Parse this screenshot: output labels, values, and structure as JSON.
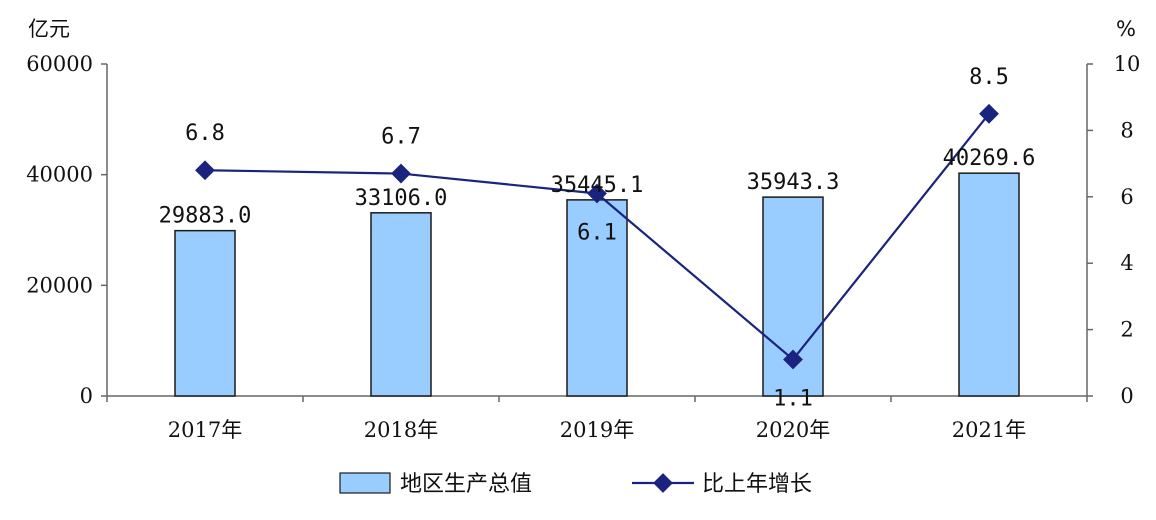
{
  "chart_data": {
    "type": "bar",
    "categories": [
      "2017年",
      "2018年",
      "2019年",
      "2020年",
      "2021年"
    ],
    "series": [
      {
        "name": "地区生产总值",
        "type": "bar",
        "axis": "left",
        "values": [
          29883.0,
          33106.0,
          35445.1,
          35943.3,
          40269.6
        ],
        "labels": [
          "29883.0",
          "33106.0",
          "35445.1",
          "35943.3",
          "40269.6"
        ]
      },
      {
        "name": "比上年增长",
        "type": "line",
        "axis": "right",
        "values": [
          6.8,
          6.7,
          6.1,
          1.1,
          8.5
        ],
        "labels": [
          "6.8",
          "6.7",
          "6.1",
          "1.1",
          "8.5"
        ]
      }
    ],
    "y_left": {
      "unit": "亿元",
      "min": 0,
      "max": 60000,
      "ticks": [
        "0",
        "20000",
        "40000",
        "60000"
      ]
    },
    "y_right": {
      "unit": "%",
      "min": 0,
      "max": 10,
      "ticks": [
        "0",
        "2",
        "4",
        "6",
        "8",
        "10"
      ]
    },
    "legend_position": "bottom",
    "grid": false,
    "colors": {
      "bar_fill": "#99ccff",
      "bar_stroke": "#1a1a1a",
      "line": "#1a237e",
      "marker": "#1a237e",
      "axis": "#555555"
    }
  }
}
